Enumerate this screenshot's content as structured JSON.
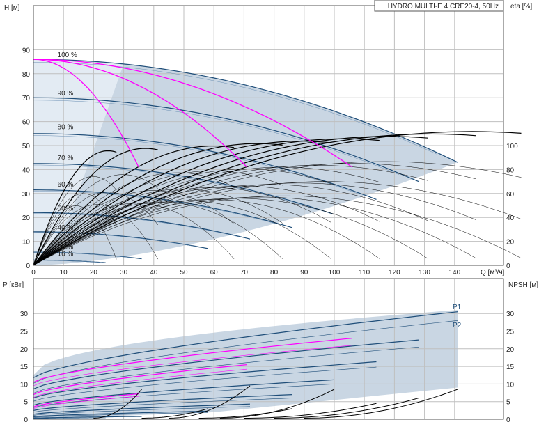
{
  "chart_data": [
    {
      "type": "line",
      "title": "HYDRO MULTI-E 4 CRE20-4, 50Hz",
      "xlabel": "Q [м³/ч]",
      "ylabel": "H [м]",
      "y2label": "eta [%]",
      "xlim": [
        0,
        150
      ],
      "ylim": [
        0,
        100
      ],
      "y2lim": [
        0,
        200
      ],
      "grid": true,
      "x_ticks": [
        0,
        10,
        20,
        30,
        40,
        50,
        60,
        70,
        80,
        90,
        100,
        110,
        120,
        130,
        140
      ],
      "y_ticks": [
        0,
        10,
        20,
        30,
        40,
        50,
        60,
        70,
        80,
        90
      ],
      "y2_ticks": [
        0,
        20,
        40,
        60,
        80,
        100
      ],
      "speed_labels": [
        {
          "label": "100 %",
          "x": 8,
          "y": 86
        },
        {
          "label": "90 %",
          "x": 8,
          "y": 70
        },
        {
          "label": "80 %",
          "x": 8,
          "y": 56
        },
        {
          "label": "70 %",
          "x": 8,
          "y": 43
        },
        {
          "label": "60 %",
          "x": 8,
          "y": 32
        },
        {
          "label": "50 %",
          "x": 8,
          "y": 22
        },
        {
          "label": "40 %",
          "x": 8,
          "y": 14
        },
        {
          "label": "25 %",
          "x": 8,
          "y": 6
        },
        {
          "label": "16 %",
          "x": 8,
          "y": 3
        }
      ],
      "series": [
        {
          "speed": 1.0,
          "H0": 86,
          "Qmax": 141
        },
        {
          "speed": 0.9,
          "H0": 70,
          "Qmax": 128
        },
        {
          "speed": 0.8,
          "H0": 55,
          "Qmax": 114
        },
        {
          "speed": 0.7,
          "H0": 42.5,
          "Qmax": 100
        },
        {
          "speed": 0.6,
          "H0": 31.5,
          "Qmax": 86
        },
        {
          "speed": 0.5,
          "H0": 22,
          "Qmax": 72
        },
        {
          "speed": 0.4,
          "H0": 14,
          "Qmax": 58
        },
        {
          "speed": 0.25,
          "H0": 5.5,
          "Qmax": 36
        },
        {
          "speed": 0.16,
          "H0": 2.2,
          "Qmax": 24
        }
      ],
      "system_curves": [
        {
          "top_x": 35,
          "top_y": 41
        },
        {
          "top_x": 71,
          "top_y": 41
        },
        {
          "top_x": 106,
          "top_y": 41
        }
      ],
      "colors": {
        "pump_curve": "#1f4e79",
        "system_curve": "#ff00ff",
        "efficiency": "#000000",
        "region": "#c9d6e3",
        "region_light": "#e3ebf3"
      }
    },
    {
      "type": "line",
      "xlabel": "",
      "ylabel": "P [кВт]",
      "y2label": "NPSH [м]",
      "xlim": [
        0,
        150
      ],
      "ylim": [
        0,
        35
      ],
      "y2lim": [
        0,
        35
      ],
      "grid": true,
      "y_ticks": [
        0,
        5,
        10,
        15,
        20,
        25,
        30
      ],
      "y2_ticks": [
        0,
        5,
        10,
        15,
        20,
        25,
        30
      ],
      "series_labels": [
        "P1",
        "P2"
      ],
      "power_curves": [
        {
          "p0": 11.8,
          "pend": 30.5,
          "Qmax": 141
        },
        {
          "p0": 10.2,
          "pend": 28.0,
          "Qmax": 141
        },
        {
          "p0": 8.6,
          "pend": 22.5,
          "Qmax": 128
        },
        {
          "p0": 7.4,
          "pend": 20.5,
          "Qmax": 128
        },
        {
          "p0": 6.0,
          "pend": 16.3,
          "Qmax": 114
        },
        {
          "p0": 5.1,
          "pend": 14.8,
          "Qmax": 114
        },
        {
          "p0": 4.0,
          "pend": 11.2,
          "Qmax": 100
        },
        {
          "p0": 3.3,
          "pend": 10.0,
          "Qmax": 100
        },
        {
          "p0": 2.5,
          "pend": 7.0,
          "Qmax": 86
        },
        {
          "p0": 2.0,
          "pend": 6.0,
          "Qmax": 86
        },
        {
          "p0": 1.4,
          "pend": 4.3,
          "Qmax": 72
        },
        {
          "p0": 1.1,
          "pend": 3.6,
          "Qmax": 72
        },
        {
          "p0": 0.7,
          "pend": 2.3,
          "Qmax": 58
        },
        {
          "p0": 0.5,
          "pend": 1.9,
          "Qmax": 58
        },
        {
          "p0": 0.3,
          "pend": 0.8,
          "Qmax": 36
        },
        {
          "p0": 0.2,
          "pend": 0.4,
          "Qmax": 24
        }
      ],
      "magenta_power": [
        {
          "p0": 10.5,
          "pend": 23.0,
          "Qmax": 106
        },
        {
          "p0": 9.5,
          "pend": 21.0,
          "Qmax": 106
        },
        {
          "p0": 7.0,
          "pend": 15.5,
          "Qmax": 71
        },
        {
          "p0": 6.2,
          "pend": 14.2,
          "Qmax": 71
        },
        {
          "p0": 3.5,
          "pend": 7.2,
          "Qmax": 35
        },
        {
          "p0": 3.0,
          "pend": 6.5,
          "Qmax": 35
        }
      ],
      "npsh_curves": [
        {
          "Qs": 90,
          "Qe": 141,
          "end": 8.5
        },
        {
          "Qs": 80,
          "Qe": 128,
          "end": 6.0
        },
        {
          "Qs": 70,
          "Qe": 114,
          "end": 4.5
        },
        {
          "Qs": 62,
          "Qe": 100,
          "end": 8.5
        },
        {
          "Qs": 55,
          "Qe": 86,
          "end": 3.0
        },
        {
          "Qs": 45,
          "Qe": 72,
          "end": 9.5
        },
        {
          "Qs": 36,
          "Qe": 58,
          "end": 3.0
        },
        {
          "Qs": 20,
          "Qe": 36,
          "end": 8.5
        }
      ]
    }
  ]
}
